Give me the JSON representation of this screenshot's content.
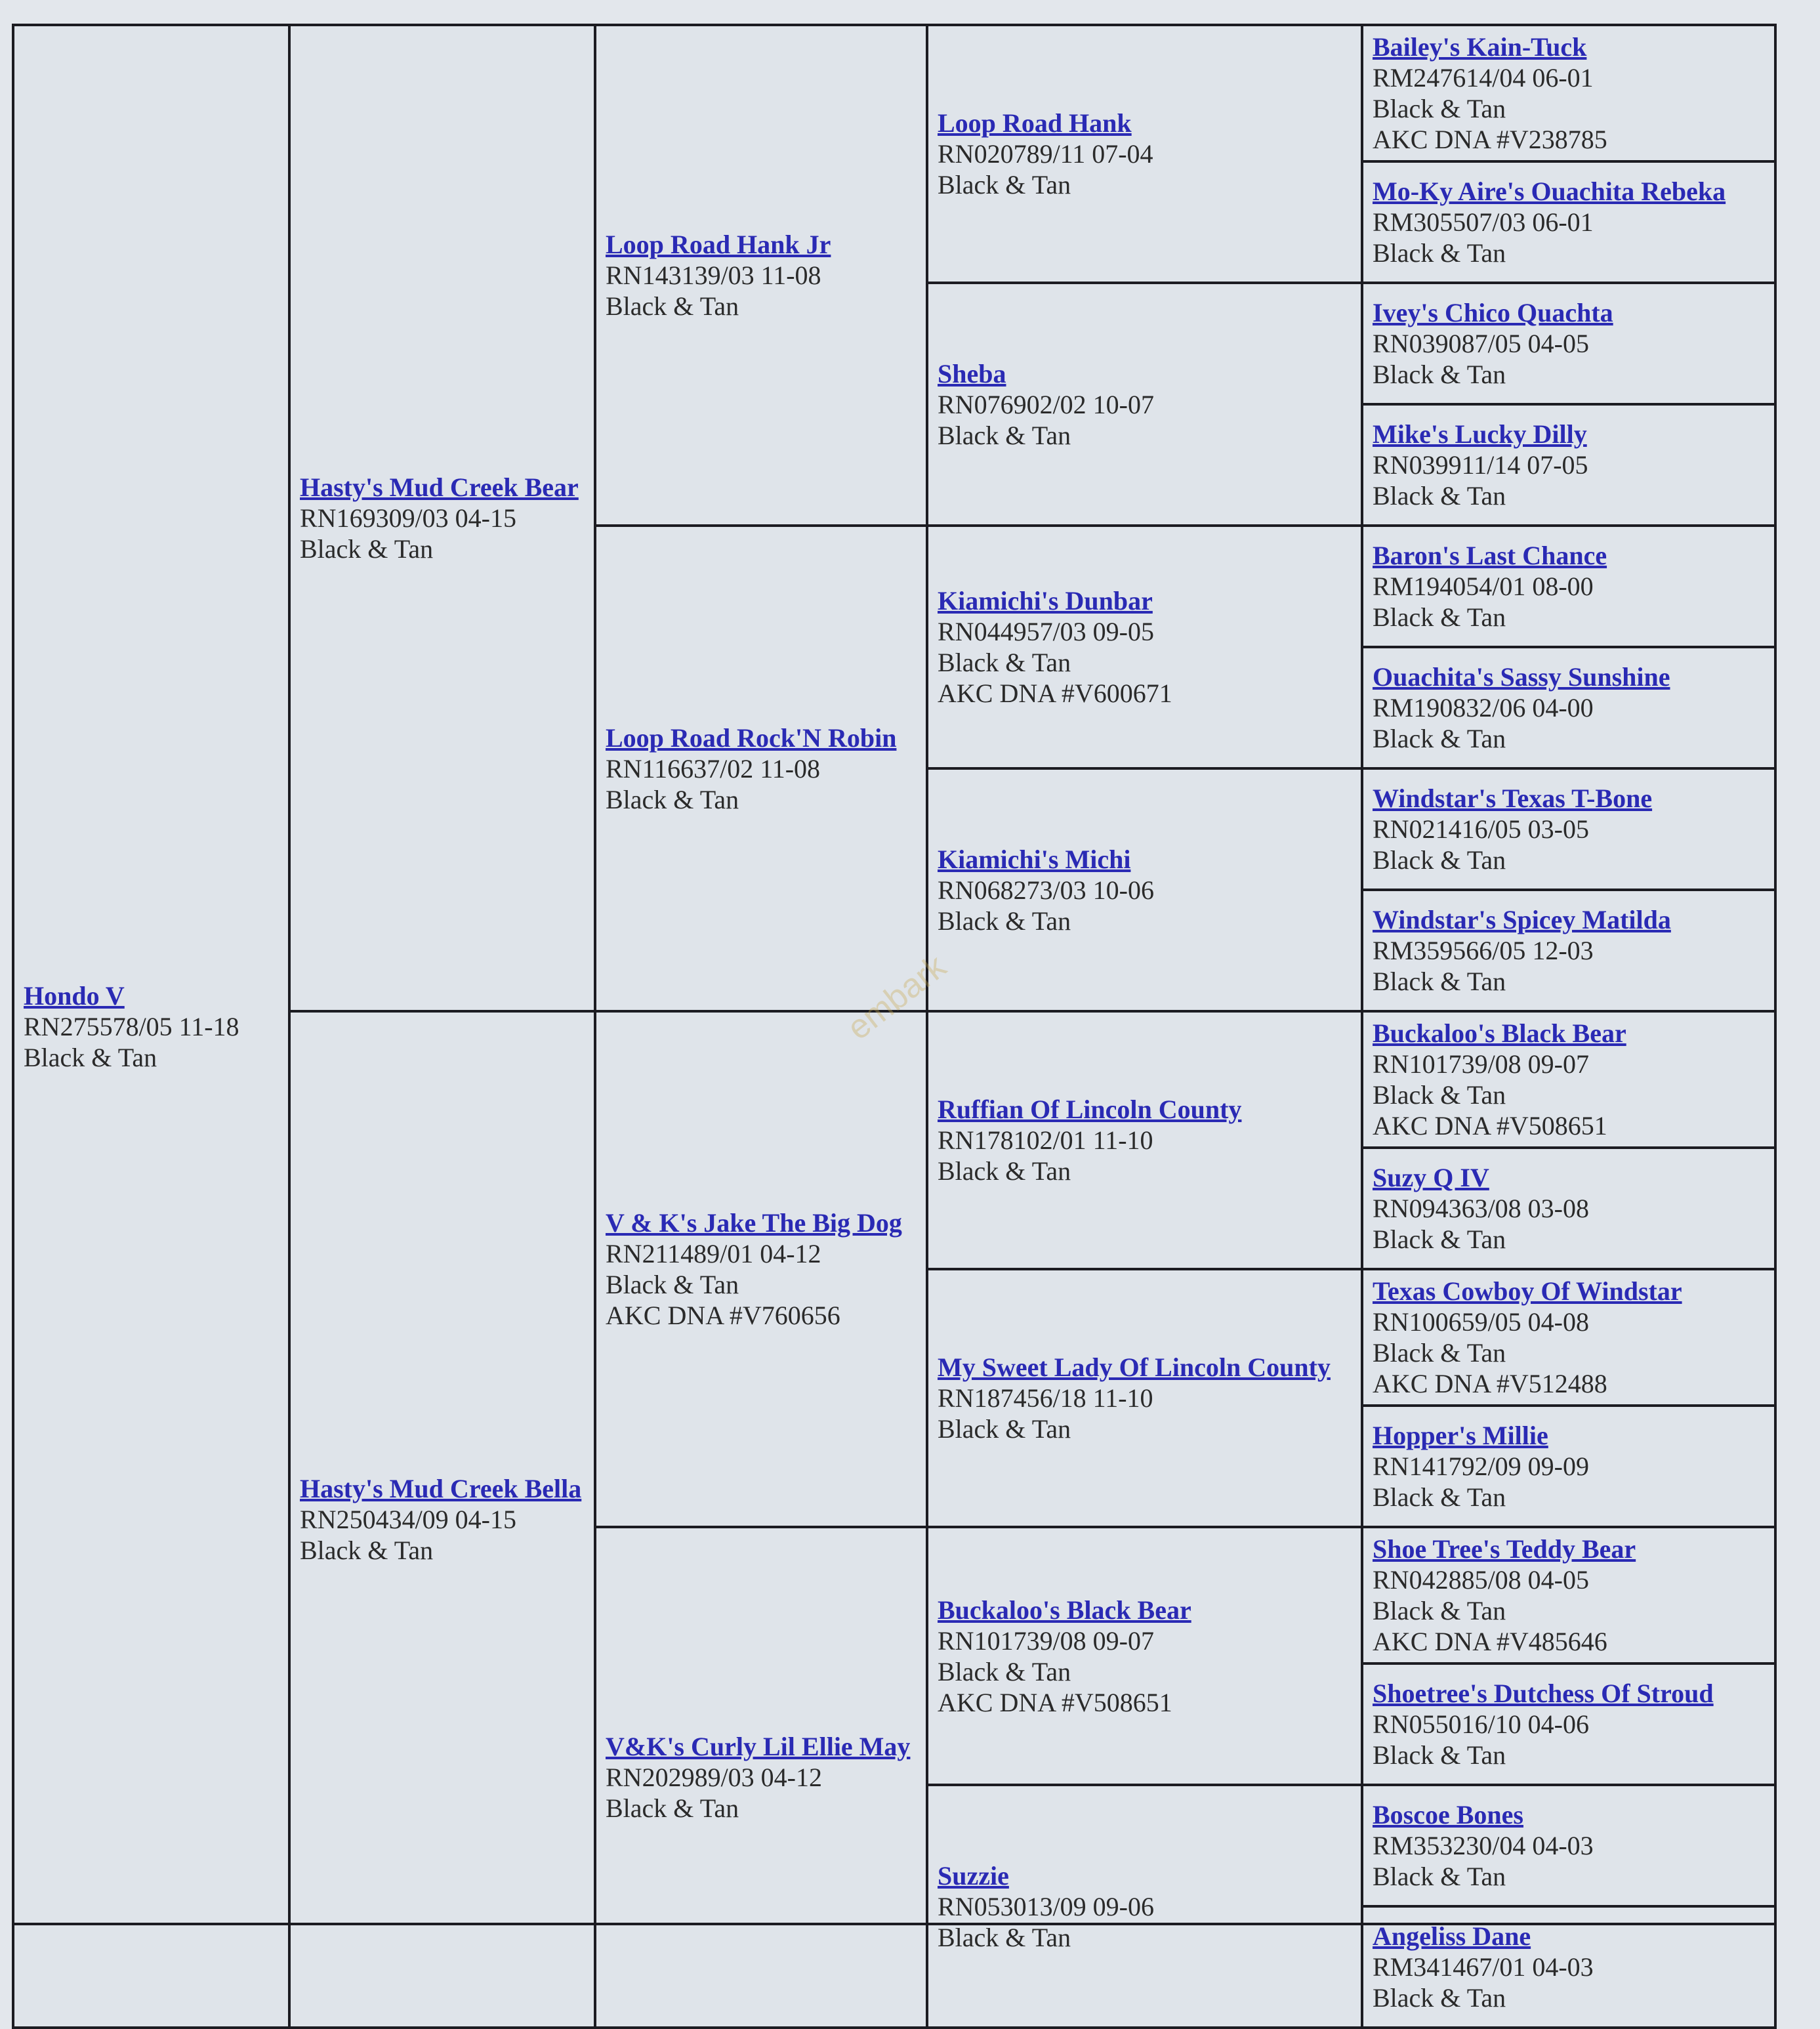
{
  "watermark": "embark",
  "pedigree": {
    "gen1": [
      {
        "name": "Hondo V",
        "reg": "RN275578/05 11-18",
        "color": "Black & Tan"
      }
    ],
    "gen2": [
      {
        "name": "Hasty's Mud Creek Bear",
        "reg": "RN169309/03 04-15",
        "color": "Black & Tan"
      },
      {
        "name": "Hasty's Mud Creek Bella",
        "reg": "RN250434/09 04-15",
        "color": "Black & Tan"
      }
    ],
    "gen3": [
      {
        "name": "Loop Road Hank Jr",
        "reg": "RN143139/03 11-08",
        "color": "Black & Tan"
      },
      {
        "name": "Loop Road Rock'N Robin",
        "reg": "RN116637/02 11-08",
        "color": "Black & Tan"
      },
      {
        "name": "V & K's Jake The Big Dog",
        "reg": "RN211489/01 04-12",
        "color": "Black & Tan",
        "dna": "AKC DNA #V760656"
      },
      {
        "name": "V&K's Curly Lil Ellie May",
        "reg": "RN202989/03 04-12",
        "color": "Black & Tan"
      }
    ],
    "gen4": [
      {
        "name": "Loop Road Hank",
        "reg": "RN020789/11 07-04",
        "color": "Black & Tan"
      },
      {
        "name": "Sheba",
        "reg": "RN076902/02 10-07",
        "color": "Black & Tan"
      },
      {
        "name": "Kiamichi's Dunbar",
        "reg": "RN044957/03 09-05",
        "color": "Black & Tan",
        "dna": "AKC DNA #V600671"
      },
      {
        "name": "Kiamichi's Michi",
        "reg": "RN068273/03 10-06",
        "color": "Black & Tan"
      },
      {
        "name": "Ruffian Of Lincoln County",
        "reg": "RN178102/01 11-10",
        "color": "Black & Tan"
      },
      {
        "name": "My Sweet Lady Of Lincoln County",
        "reg": "RN187456/18 11-10",
        "color": "Black & Tan"
      },
      {
        "name": "Buckaloo's Black Bear",
        "reg": "RN101739/08 09-07",
        "color": "Black & Tan",
        "dna": "AKC DNA #V508651"
      },
      {
        "name": "Suzzie",
        "reg": "RN053013/09 09-06",
        "color": "Black & Tan"
      }
    ],
    "gen5": [
      {
        "name": "Bailey's Kain-Tuck",
        "reg": "RM247614/04 06-01",
        "color": "Black & Tan",
        "dna": "AKC DNA #V238785"
      },
      {
        "name": "Mo-Ky Aire's Ouachita Rebeka",
        "reg": "RM305507/03 06-01",
        "color": "Black & Tan"
      },
      {
        "name": "Ivey's Chico Quachta",
        "reg": "RN039087/05 04-05",
        "color": "Black & Tan"
      },
      {
        "name": "Mike's Lucky Dilly",
        "reg": "RN039911/14 07-05",
        "color": "Black & Tan"
      },
      {
        "name": "Baron's Last Chance",
        "reg": "RM194054/01 08-00",
        "color": "Black & Tan"
      },
      {
        "name": "Ouachita's Sassy Sunshine",
        "reg": "RM190832/06 04-00",
        "color": "Black & Tan"
      },
      {
        "name": "Windstar's Texas T-Bone",
        "reg": "RN021416/05 03-05",
        "color": "Black & Tan"
      },
      {
        "name": "Windstar's Spicey Matilda",
        "reg": "RM359566/05 12-03",
        "color": "Black & Tan"
      },
      {
        "name": "Buckaloo's Black Bear",
        "reg": "RN101739/08 09-07",
        "color": "Black & Tan",
        "dna": "AKC DNA #V508651"
      },
      {
        "name": "Suzy Q IV",
        "reg": "RN094363/08 03-08",
        "color": "Black & Tan"
      },
      {
        "name": "Texas Cowboy Of Windstar",
        "reg": "RN100659/05 04-08",
        "color": "Black & Tan",
        "dna": "AKC DNA #V512488"
      },
      {
        "name": "Hopper's Millie",
        "reg": "RN141792/09 09-09",
        "color": "Black & Tan"
      },
      {
        "name": "Shoe Tree's Teddy Bear",
        "reg": "RN042885/08 04-05",
        "color": "Black & Tan",
        "dna": "AKC DNA #V485646"
      },
      {
        "name": "Shoetree's Dutchess Of Stroud",
        "reg": "RN055016/10 04-06",
        "color": "Black & Tan"
      },
      {
        "name": "Boscoe Bones",
        "reg": "RM353230/04 04-03",
        "color": "Black & Tan"
      },
      {
        "name": "Angeliss Dane",
        "reg": "RM341467/01 04-03",
        "color": "Black & Tan"
      }
    ]
  }
}
